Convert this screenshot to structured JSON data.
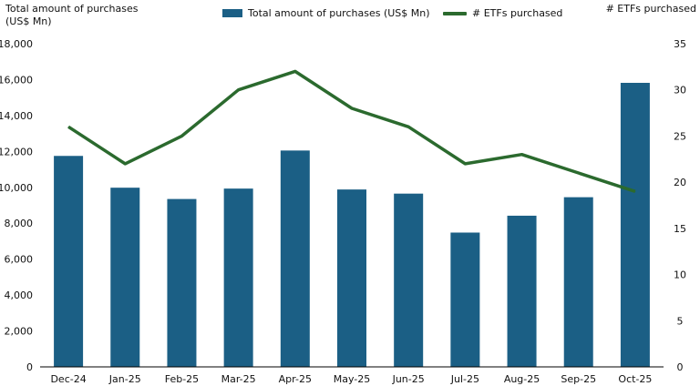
{
  "chart_data": {
    "type": "bar",
    "categories": [
      "Dec-24",
      "Jan-25",
      "Feb-25",
      "Mar-25",
      "Apr-25",
      "May-25",
      "Jun-25",
      "Jul-25",
      "Aug-25",
      "Sep-25",
      "Oct-25"
    ],
    "series": [
      {
        "name": "Total amount of purchases (US$ Mn)",
        "type": "bar",
        "axis": "left",
        "color": "#1b5f85",
        "values": [
          11750,
          9980,
          9350,
          9930,
          12050,
          9880,
          9650,
          7480,
          8420,
          9450,
          15820
        ]
      },
      {
        "name": "# ETFs purchased",
        "type": "line",
        "axis": "right",
        "color": "#2b6a2e",
        "values": [
          26,
          22,
          25,
          30,
          32,
          28,
          26,
          22,
          23,
          21,
          19
        ]
      }
    ],
    "ylabel_left": [
      "Total amount of purchases",
      "(US$ Mn)"
    ],
    "ylabel_right": "# ETFs purchased",
    "ylim_left": [
      0,
      18000
    ],
    "yticks_left": [
      "0",
      "2,000",
      "4,000",
      "6,000",
      "8,000",
      "10,000",
      "12,000",
      "14,000",
      "16,000",
      "18,000"
    ],
    "ylim_right": [
      0,
      35
    ],
    "yticks_right": [
      "0",
      "5",
      "10",
      "15",
      "20",
      "25",
      "30",
      "35"
    ],
    "grid": false,
    "legend_position": "top-center"
  }
}
